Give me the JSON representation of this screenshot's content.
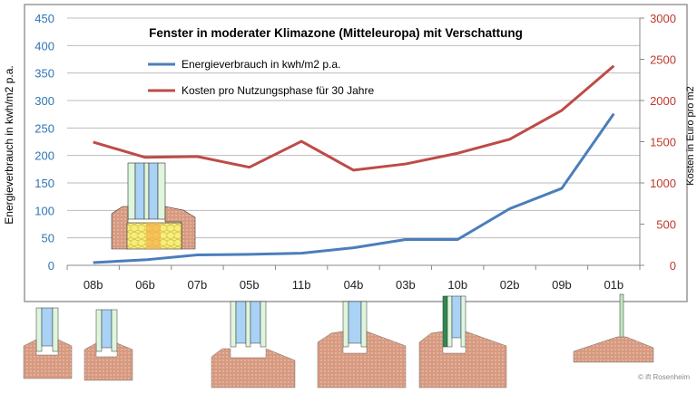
{
  "chart_data": {
    "type": "line",
    "title": "Fenster in moderater Klimazone (Mitteleuropa) mit Verschattung",
    "categories": [
      "08b",
      "06b",
      "07b",
      "05b",
      "11b",
      "04b",
      "03b",
      "10b",
      "02b",
      "09b",
      "01b"
    ],
    "series": [
      {
        "name": "Energieverbrauch in kwh/m2 p.a.",
        "axis": "left",
        "color": "#4a7ebb",
        "values": [
          5,
          10,
          19,
          20,
          22,
          32,
          47,
          47,
          103,
          140,
          276
        ]
      },
      {
        "name": "Kosten pro Nutzungsphase für 30 Jahre",
        "axis": "right",
        "color": "#be4b48",
        "values": [
          1495,
          1310,
          1320,
          1190,
          1505,
          1155,
          1230,
          1360,
          1530,
          1880,
          2420
        ]
      }
    ],
    "ylabel": "Energieverbrauch in kwh/m2 p.a.",
    "ylim": [
      0,
      450
    ],
    "yticks": [
      "0",
      "50",
      "100",
      "150",
      "200",
      "250",
      "300",
      "350",
      "400",
      "450"
    ],
    "y2label": "Kosten in Euro pro m2",
    "y2lim": [
      0,
      3000
    ],
    "y2ticks": [
      "0",
      "500",
      "1000",
      "1500",
      "2000",
      "2500",
      "3000"
    ],
    "grid": true,
    "legend_placement": "top-left",
    "left_axis_color": "#2e75b6",
    "right_axis_color": "#c0392b"
  },
  "footer": {
    "copyright": "© ift Rosenheim"
  }
}
